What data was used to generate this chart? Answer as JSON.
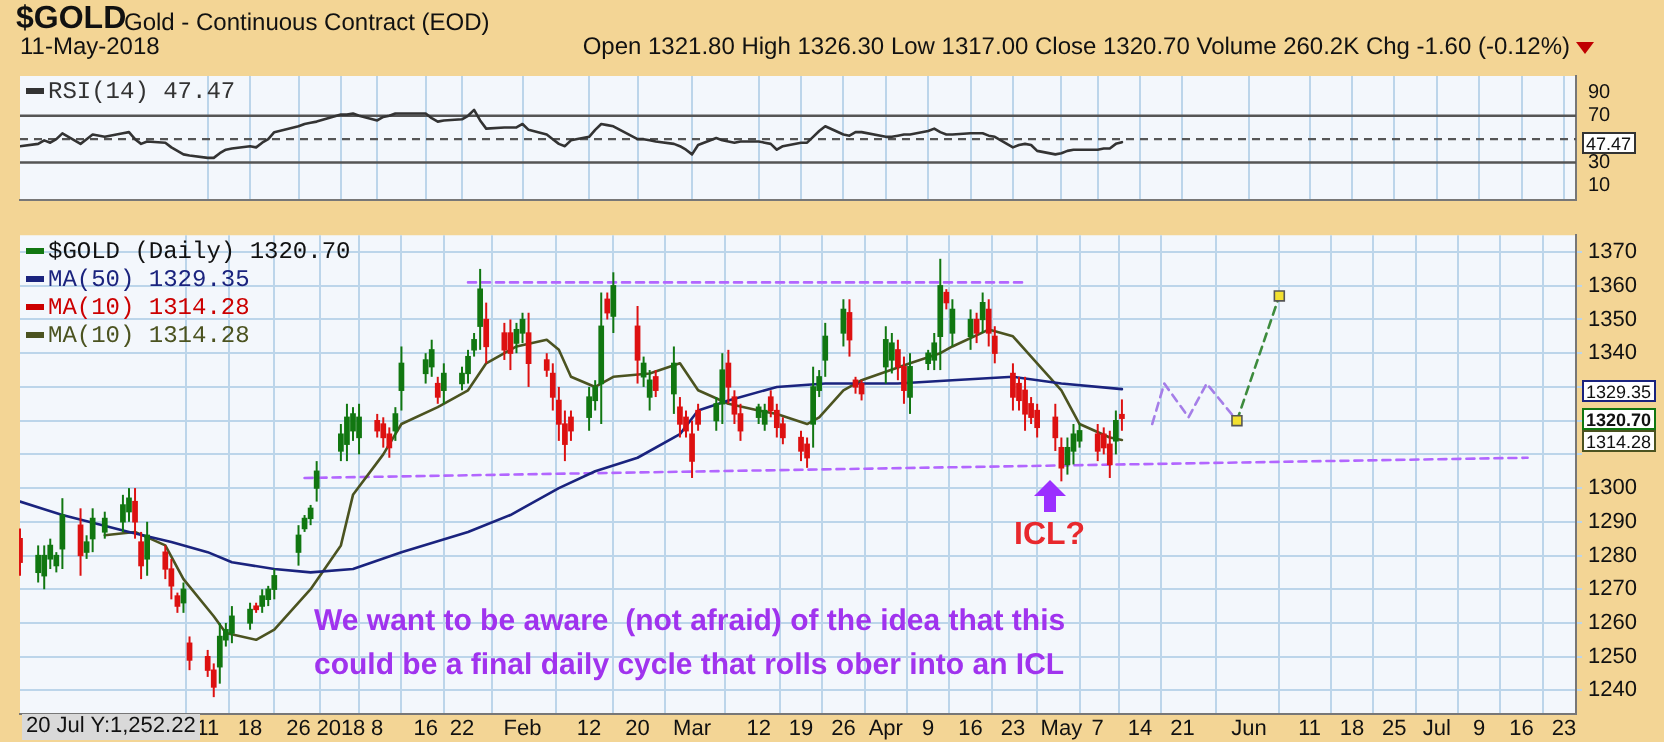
{
  "chart_data": [
    {
      "type": "line",
      "title": "$GOLD",
      "subtitle": "Gold - Continuous Contract (EOD)",
      "annotations": [
        "11-May-2018",
        "Open 1321.80 High 1326.30 Low 1317.00 Close 1320.70 Volume 260.2K Chg -1.60 (-0.12%)",
        "47.47"
      ],
      "x": [
        "2017-11-10",
        "2017-11-13",
        "2017-11-14",
        "2017-11-15",
        "2017-11-16",
        "2017-11-17",
        "2017-11-20",
        "2017-11-21",
        "2017-11-22",
        "2017-11-24",
        "2017-11-27",
        "2017-11-28",
        "2017-11-29",
        "2017-11-30",
        "2017-12-01",
        "2017-12-04",
        "2017-12-05",
        "2017-12-06",
        "2017-12-07",
        "2017-12-08",
        "2017-12-11",
        "2017-12-12",
        "2017-12-13",
        "2017-12-14",
        "2017-12-15",
        "2017-12-18",
        "2017-12-19",
        "2017-12-20",
        "2017-12-21",
        "2017-12-22",
        "2017-12-26",
        "2017-12-27",
        "2017-12-28",
        "2017-12-29",
        "2018-01-02",
        "2018-01-03",
        "2018-01-04",
        "2018-01-05",
        "2018-01-08",
        "2018-01-09",
        "2018-01-10",
        "2018-01-11",
        "2018-01-12",
        "2018-01-16",
        "2018-01-17",
        "2018-01-18",
        "2018-01-19",
        "2018-01-22",
        "2018-01-23",
        "2018-01-24",
        "2018-01-25",
        "2018-01-26",
        "2018-01-29",
        "2018-01-30",
        "2018-01-31",
        "2018-02-01",
        "2018-02-02",
        "2018-02-05",
        "2018-02-06",
        "2018-02-07",
        "2018-02-08",
        "2018-02-09",
        "2018-02-12",
        "2018-02-13",
        "2018-02-14",
        "2018-02-15",
        "2018-02-16",
        "2018-02-20",
        "2018-02-21",
        "2018-02-22",
        "2018-02-23",
        "2018-02-26",
        "2018-02-27",
        "2018-02-28",
        "2018-03-01",
        "2018-03-02",
        "2018-03-05",
        "2018-03-06",
        "2018-03-07",
        "2018-03-08",
        "2018-03-09",
        "2018-03-12",
        "2018-03-13",
        "2018-03-14",
        "2018-03-15",
        "2018-03-16",
        "2018-03-19",
        "2018-03-20",
        "2018-03-21",
        "2018-03-22",
        "2018-03-23",
        "2018-03-26",
        "2018-03-27",
        "2018-03-28",
        "2018-03-29",
        "2018-04-02",
        "2018-04-03",
        "2018-04-04",
        "2018-04-05",
        "2018-04-06",
        "2018-04-09",
        "2018-04-10",
        "2018-04-11",
        "2018-04-12",
        "2018-04-13",
        "2018-04-16",
        "2018-04-17",
        "2018-04-18",
        "2018-04-19",
        "2018-04-20",
        "2018-04-23",
        "2018-04-24",
        "2018-04-25",
        "2018-04-26",
        "2018-04-27",
        "2018-04-30",
        "2018-05-01",
        "2018-05-02",
        "2018-05-03",
        "2018-05-04",
        "2018-05-07",
        "2018-05-08",
        "2018-05-09",
        "2018-05-10",
        "2018-05-11"
      ],
      "xlim": [
        "2017-11-10",
        "2018-07-25"
      ],
      "xticks": [
        {
          "value": "2017-12-11",
          "label": null
        },
        {
          "value": "2017-12-18",
          "label": null
        },
        {
          "value": "2017-12-26",
          "label": null
        },
        {
          "value": "2018-01-02",
          "label": null
        },
        {
          "value": "2018-01-08",
          "label": null
        },
        {
          "value": "2018-01-16",
          "label": null
        },
        {
          "value": "2018-01-22",
          "label": null
        },
        {
          "value": "2018-02-01",
          "label": null
        },
        {
          "value": "2018-02-12",
          "label": null
        },
        {
          "value": "2018-02-20",
          "label": null
        },
        {
          "value": "2018-03-01",
          "label": null
        },
        {
          "value": "2018-03-12",
          "label": null
        },
        {
          "value": "2018-03-19",
          "label": null
        },
        {
          "value": "2018-03-26",
          "label": null
        },
        {
          "value": "2018-04-02",
          "label": null
        },
        {
          "value": "2018-04-09",
          "label": null
        },
        {
          "value": "2018-04-16",
          "label": null
        },
        {
          "value": "2018-04-23",
          "label": null
        },
        {
          "value": "2018-05-01",
          "label": null
        },
        {
          "value": "2018-05-07",
          "label": null
        },
        {
          "value": "2018-05-14",
          "label": null
        },
        {
          "value": "2018-05-21",
          "label": null
        },
        {
          "value": "2018-06-01",
          "label": null
        },
        {
          "value": "2018-06-11",
          "label": null
        },
        {
          "value": "2018-06-18",
          "label": null
        },
        {
          "value": "2018-06-25",
          "label": null
        },
        {
          "value": "2018-07-02",
          "label": null
        },
        {
          "value": "2018-07-09",
          "label": null
        },
        {
          "value": "2018-07-16",
          "label": null
        },
        {
          "value": "2018-07-23",
          "label": null
        }
      ],
      "series": [
        {
          "name": "RSI(14) 47.47",
          "color": "#333333",
          "values": [
            44,
            46,
            49,
            47,
            50,
            55,
            46,
            50,
            54,
            52,
            55,
            56,
            50,
            46,
            48,
            47,
            43,
            40,
            37,
            36,
            34,
            34,
            38,
            41,
            42,
            44,
            43,
            47,
            50,
            56,
            61,
            63,
            64,
            65,
            71,
            71,
            72,
            70,
            66,
            69,
            70,
            72,
            72,
            72,
            68,
            65,
            66,
            67,
            70,
            75,
            66,
            59,
            60,
            60,
            60,
            63,
            58,
            54,
            50,
            46,
            44,
            49,
            52,
            58,
            63,
            62,
            61,
            50,
            50,
            49,
            48,
            46,
            44,
            41,
            37,
            45,
            51,
            49,
            48,
            47,
            48,
            48,
            47,
            46,
            41,
            44,
            47,
            47,
            52,
            57,
            61,
            54,
            53,
            56,
            56,
            52,
            52,
            53,
            54,
            54,
            57,
            59,
            56,
            54,
            54,
            55,
            55,
            55,
            53,
            52,
            43,
            45,
            46,
            45,
            40,
            37,
            38,
            40,
            41,
            41,
            41,
            42,
            42,
            46,
            47.47
          ]
        }
      ],
      "ylim": [
        -2,
        104
      ],
      "yticks": [
        10,
        30,
        {
          "value": 50,
          "label": null
        },
        70,
        90
      ],
      "ref_lines": [
        {
          "axis": "y",
          "value": 70,
          "color": "#555555"
        },
        {
          "axis": "y",
          "value": 30,
          "color": "#555555"
        },
        {
          "axis": "y",
          "value": 50,
          "color": "#555555",
          "line_style": "dashed"
        }
      ],
      "grid": "x",
      "legend": "top left",
      "tick_labels": "y"
    },
    {
      "type": "candlestick",
      "annotations": [
        "We want to be aware  (not afraid) of the idea that this\ncould be a final daily cycle that rolls ober into an ICL",
        "20 Jul Y:1,252.22",
        "ICL?",
        "1329.35",
        "1320.70",
        "1314.28"
      ],
      "x": [
        "2017-11-10",
        "2017-11-13",
        "2017-11-14",
        "2017-11-15",
        "2017-11-16",
        "2017-11-17",
        "2017-11-20",
        "2017-11-21",
        "2017-11-22",
        "2017-11-24",
        "2017-11-27",
        "2017-11-28",
        "2017-11-29",
        "2017-11-30",
        "2017-12-01",
        "2017-12-04",
        "2017-12-05",
        "2017-12-06",
        "2017-12-07",
        "2017-12-08",
        "2017-12-11",
        "2017-12-12",
        "2017-12-13",
        "2017-12-14",
        "2017-12-15",
        "2017-12-18",
        "2017-12-19",
        "2017-12-20",
        "2017-12-21",
        "2017-12-22",
        "2017-12-26",
        "2017-12-27",
        "2017-12-28",
        "2017-12-29",
        "2018-01-02",
        "2018-01-03",
        "2018-01-04",
        "2018-01-05",
        "2018-01-08",
        "2018-01-09",
        "2018-01-10",
        "2018-01-11",
        "2018-01-12",
        "2018-01-16",
        "2018-01-17",
        "2018-01-18",
        "2018-01-19",
        "2018-01-22",
        "2018-01-23",
        "2018-01-24",
        "2018-01-25",
        "2018-01-26",
        "2018-01-29",
        "2018-01-30",
        "2018-01-31",
        "2018-02-01",
        "2018-02-02",
        "2018-02-05",
        "2018-02-06",
        "2018-02-07",
        "2018-02-08",
        "2018-02-09",
        "2018-02-12",
        "2018-02-13",
        "2018-02-14",
        "2018-02-15",
        "2018-02-16",
        "2018-02-20",
        "2018-02-21",
        "2018-02-22",
        "2018-02-23",
        "2018-02-26",
        "2018-02-27",
        "2018-02-28",
        "2018-03-01",
        "2018-03-02",
        "2018-03-05",
        "2018-03-06",
        "2018-03-07",
        "2018-03-08",
        "2018-03-09",
        "2018-03-12",
        "2018-03-13",
        "2018-03-14",
        "2018-03-15",
        "2018-03-16",
        "2018-03-19",
        "2018-03-20",
        "2018-03-21",
        "2018-03-22",
        "2018-03-23",
        "2018-03-26",
        "2018-03-27",
        "2018-03-28",
        "2018-03-29",
        "2018-04-02",
        "2018-04-03",
        "2018-04-04",
        "2018-04-05",
        "2018-04-06",
        "2018-04-09",
        "2018-04-10",
        "2018-04-11",
        "2018-04-12",
        "2018-04-13",
        "2018-04-16",
        "2018-04-17",
        "2018-04-18",
        "2018-04-19",
        "2018-04-20",
        "2018-04-23",
        "2018-04-24",
        "2018-04-25",
        "2018-04-26",
        "2018-04-27",
        "2018-04-30",
        "2018-05-01",
        "2018-05-02",
        "2018-05-03",
        "2018-05-04",
        "2018-05-07",
        "2018-05-08",
        "2018-05-09",
        "2018-05-10",
        "2018-05-11"
      ],
      "xlim": [
        "2017-11-10",
        "2018-07-25"
      ],
      "xticks": [
        {
          "value": "2017-12-11",
          "label": "11"
        },
        {
          "value": "2017-12-18",
          "label": "18"
        },
        {
          "value": "2017-12-26",
          "label": "26"
        },
        {
          "value": "2018-01-02",
          "label": "2018"
        },
        {
          "value": "2018-01-08",
          "label": "8"
        },
        {
          "value": "2018-01-16",
          "label": "16"
        },
        {
          "value": "2018-01-22",
          "label": "22"
        },
        {
          "value": "2018-02-01",
          "label": "Feb"
        },
        {
          "value": "2018-02-12",
          "label": "12"
        },
        {
          "value": "2018-02-20",
          "label": "20"
        },
        {
          "value": "2018-03-01",
          "label": "Mar"
        },
        {
          "value": "2018-03-12",
          "label": "12"
        },
        {
          "value": "2018-03-19",
          "label": "19"
        },
        {
          "value": "2018-03-26",
          "label": "26"
        },
        {
          "value": "2018-04-02",
          "label": "Apr"
        },
        {
          "value": "2018-04-09",
          "label": "9"
        },
        {
          "value": "2018-04-16",
          "label": "16"
        },
        {
          "value": "2018-04-23",
          "label": "23"
        },
        {
          "value": "2018-05-01",
          "label": "May"
        },
        {
          "value": "2018-05-07",
          "label": "7"
        },
        {
          "value": "2018-05-14",
          "label": "14"
        },
        {
          "value": "2018-05-21",
          "label": "21"
        },
        {
          "value": "2018-06-01",
          "label": "Jun"
        },
        {
          "value": "2018-06-11",
          "label": "11"
        },
        {
          "value": "2018-06-18",
          "label": "18"
        },
        {
          "value": "2018-06-25",
          "label": "25"
        },
        {
          "value": "2018-07-02",
          "label": "Jul"
        },
        {
          "value": "2018-07-09",
          "label": "9"
        },
        {
          "value": "2018-07-16",
          "label": "16"
        },
        {
          "value": "2018-07-23",
          "label": "23"
        }
      ],
      "ylim": [
        1233,
        1375
      ],
      "yticks": [
        1240,
        1250,
        1260,
        1270,
        1280,
        1290,
        1300,
        {
          "value": 1310,
          "label": null
        },
        {
          "value": 1320,
          "label": null
        },
        {
          "value": 1330,
          "label": null
        },
        1340,
        1350,
        1360,
        1370
      ],
      "grid": true,
      "legend": "top left",
      "tick_labels": "xy",
      "series": [
        {
          "name": "$GOLD (Daily) 1320.70",
          "color": "#117711",
          "ohlc": [
            [
              1285,
              1288,
              1274,
              1278
            ],
            [
              1275,
              1283,
              1272,
              1280
            ],
            [
              1274,
              1283,
              1270,
              1280
            ],
            [
              1279,
              1285,
              1276,
              1283
            ],
            [
              1277,
              1281,
              1275,
              1280
            ],
            [
              1282,
              1297,
              1276,
              1292
            ],
            [
              1289,
              1294,
              1274,
              1280
            ],
            [
              1281,
              1286,
              1279,
              1284
            ],
            [
              1285,
              1294,
              1281,
              1291
            ],
            [
              1287,
              1293,
              1285,
              1291
            ],
            [
              1290,
              1298,
              1287,
              1295
            ],
            [
              1293,
              1300,
              1290,
              1297
            ],
            [
              1296,
              1300,
              1285,
              1290
            ],
            [
              1284,
              1287,
              1273,
              1277
            ],
            [
              1279,
              1290,
              1274,
              1286
            ],
            [
              1281,
              1283,
              1273,
              1276
            ],
            [
              1276,
              1279,
              1267,
              1271
            ],
            [
              1268,
              1269,
              1263,
              1265
            ],
            [
              1266,
              1272,
              1263,
              1270
            ],
            [
              1254,
              1256,
              1246,
              1249
            ],
            [
              1250,
              1252,
              1244,
              1246
            ],
            [
              1246,
              1248,
              1238,
              1241
            ],
            [
              1247,
              1260,
              1242,
              1256
            ],
            [
              1255,
              1260,
              1253,
              1258
            ],
            [
              1257,
              1265,
              1254,
              1262
            ],
            [
              1260,
              1266,
              1258,
              1264
            ],
            [
              1265,
              1266,
              1263,
              1264
            ],
            [
              1265,
              1270,
              1263,
              1268
            ],
            [
              1267,
              1271,
              1265,
              1270
            ],
            [
              1270,
              1276,
              1267,
              1274
            ],
            [
              1281,
              1289,
              1277,
              1286
            ],
            [
              1288,
              1292,
              1287,
              1291
            ],
            [
              1291,
              1295,
              1289,
              1294
            ],
            [
              1300,
              1308,
              1296,
              1305
            ],
            [
              1311,
              1319,
              1308,
              1316
            ],
            [
              1313,
              1325,
              1308,
              1321
            ],
            [
              1317,
              1324,
              1314,
              1322
            ],
            [
              1315,
              1325,
              1310,
              1321
            ],
            [
              1320,
              1322,
              1315,
              1317
            ],
            [
              1319,
              1321,
              1312,
              1315
            ],
            [
              1316,
              1318,
              1309,
              1312
            ],
            [
              1317,
              1324,
              1314,
              1322
            ],
            [
              1329,
              1342,
              1323,
              1337
            ],
            [
              1334,
              1340,
              1331,
              1338
            ],
            [
              1336,
              1344,
              1333,
              1341
            ],
            [
              1331,
              1333,
              1325,
              1327
            ],
            [
              1329,
              1337,
              1325,
              1334
            ],
            [
              1331,
              1336,
              1329,
              1334
            ],
            [
              1334,
              1341,
              1331,
              1339
            ],
            [
              1341,
              1346,
              1339,
              1344
            ],
            [
              1348,
              1365,
              1341,
              1359
            ],
            [
              1350,
              1355,
              1337,
              1342
            ],
            [
              1346,
              1349,
              1338,
              1341
            ],
            [
              1346,
              1350,
              1335,
              1340
            ],
            [
              1343,
              1349,
              1340,
              1347
            ],
            [
              1346,
              1352,
              1343,
              1350
            ],
            [
              1346,
              1352,
              1330,
              1337
            ],
            [
              1338,
              1340,
              1333,
              1335
            ],
            [
              1334,
              1337,
              1323,
              1327
            ],
            [
              1326,
              1330,
              1314,
              1319
            ],
            [
              1319,
              1323,
              1308,
              1313
            ],
            [
              1321,
              1323,
              1314,
              1317
            ],
            [
              1321,
              1330,
              1317,
              1327
            ],
            [
              1326,
              1332,
              1323,
              1330
            ],
            [
              1331,
              1358,
              1319,
              1348
            ],
            [
              1356,
              1358,
              1350,
              1352
            ],
            [
              1351,
              1364,
              1346,
              1360
            ],
            [
              1348,
              1354,
              1331,
              1338
            ],
            [
              1333,
              1339,
              1330,
              1337
            ],
            [
              1327,
              1335,
              1323,
              1332
            ],
            [
              1333,
              1335,
              1327,
              1329
            ],
            [
              1328,
              1342,
              1322,
              1337
            ],
            [
              1324,
              1327,
              1315,
              1319
            ],
            [
              1321,
              1323,
              1315,
              1317
            ],
            [
              1316,
              1320,
              1303,
              1308
            ],
            [
              1323,
              1325,
              1317,
              1319
            ],
            [
              1320,
              1327,
              1317,
              1325
            ],
            [
              1325,
              1340,
              1319,
              1335
            ],
            [
              1337,
              1341,
              1325,
              1330
            ],
            [
              1327,
              1329,
              1319,
              1322
            ],
            [
              1322,
              1325,
              1314,
              1317
            ],
            [
              1321,
              1325,
              1319,
              1324
            ],
            [
              1319,
              1325,
              1317,
              1323
            ],
            [
              1327,
              1329,
              1321,
              1323
            ],
            [
              1323,
              1325,
              1315,
              1318
            ],
            [
              1319,
              1321,
              1313,
              1315
            ],
            [
              1315,
              1317,
              1308,
              1311
            ],
            [
              1313,
              1315,
              1306,
              1309
            ],
            [
              1319,
              1336,
              1312,
              1330
            ],
            [
              1329,
              1335,
              1327,
              1333
            ],
            [
              1338,
              1349,
              1333,
              1345
            ],
            [
              1346,
              1356,
              1342,
              1353
            ],
            [
              1352,
              1356,
              1339,
              1344
            ],
            [
              1332,
              1333,
              1328,
              1330
            ],
            [
              1331,
              1332,
              1326,
              1328
            ],
            [
              1336,
              1348,
              1331,
              1344
            ],
            [
              1338,
              1346,
              1334,
              1343
            ],
            [
              1341,
              1344,
              1332,
              1336
            ],
            [
              1336,
              1339,
              1325,
              1329
            ],
            [
              1327,
              1340,
              1322,
              1336
            ],
            [
              1337,
              1341,
              1335,
              1340
            ],
            [
              1338,
              1346,
              1335,
              1343
            ],
            [
              1345,
              1368,
              1335,
              1360
            ],
            [
              1358,
              1359,
              1353,
              1355
            ],
            [
              1346,
              1356,
              1342,
              1353
            ],
            [
              1345,
              1353,
              1341,
              1350
            ],
            [
              1350,
              1352,
              1343,
              1346
            ],
            [
              1350,
              1358,
              1346,
              1355
            ],
            [
              1353,
              1356,
              1342,
              1346
            ],
            [
              1345,
              1348,
              1337,
              1340
            ],
            [
              1334,
              1337,
              1323,
              1327
            ],
            [
              1331,
              1333,
              1323,
              1326
            ],
            [
              1329,
              1333,
              1317,
              1322
            ],
            [
              1325,
              1327,
              1319,
              1321
            ],
            [
              1323,
              1325,
              1315,
              1318
            ],
            [
              1321,
              1325,
              1311,
              1315
            ],
            [
              1312,
              1315,
              1302,
              1306
            ],
            [
              1307,
              1315,
              1304,
              1312
            ],
            [
              1311,
              1319,
              1307,
              1316
            ],
            [
              1314,
              1319,
              1312,
              1317
            ],
            [
              1316,
              1319,
              1308,
              1311
            ],
            [
              1316,
              1318,
              1310,
              1312
            ],
            [
              1313,
              1317,
              1303,
              1307
            ],
            [
              1314,
              1323,
              1310,
              1320
            ],
            [
              1321.8,
              1326.3,
              1317,
              1320.7
            ]
          ],
          "colors": [
            "#dd1111",
            "#117711",
            "#117711",
            "#117711",
            "#117711",
            "#117711",
            "#dd1111",
            "#117711",
            "#117711",
            "#117711",
            "#117711",
            "#117711",
            "#dd1111",
            "#dd1111",
            "#117711",
            "#dd1111",
            "#dd1111",
            "#dd1111",
            "#117711",
            "#dd1111",
            "#dd1111",
            "#dd1111",
            "#117711",
            "#117711",
            "#117711",
            "#117711",
            "#dd1111",
            "#117711",
            "#117711",
            "#117711",
            "#117711",
            "#117711",
            "#117711",
            "#117711",
            "#117711",
            "#117711",
            "#117711",
            "#117711",
            "#dd1111",
            "#dd1111",
            "#dd1111",
            "#117711",
            "#117711",
            "#117711",
            "#117711",
            "#dd1111",
            "#117711",
            "#117711",
            "#117711",
            "#117711",
            "#117711",
            "#dd1111",
            "#dd1111",
            "#dd1111",
            "#117711",
            "#117711",
            "#dd1111",
            "#dd1111",
            "#dd1111",
            "#dd1111",
            "#dd1111",
            "#dd1111",
            "#117711",
            "#117711",
            "#117711",
            "#dd1111",
            "#117711",
            "#dd1111",
            "#117711",
            "#117711",
            "#dd1111",
            "#117711",
            "#dd1111",
            "#dd1111",
            "#dd1111",
            "#dd1111",
            "#117711",
            "#117711",
            "#dd1111",
            "#dd1111",
            "#dd1111",
            "#117711",
            "#117711",
            "#dd1111",
            "#dd1111",
            "#dd1111",
            "#dd1111",
            "#dd1111",
            "#117711",
            "#117711",
            "#117711",
            "#117711",
            "#dd1111",
            "#dd1111",
            "#dd1111",
            "#117711",
            "#117711",
            "#dd1111",
            "#dd1111",
            "#117711",
            "#117711",
            "#117711",
            "#117711",
            "#dd1111",
            "#117711",
            "#117711",
            "#dd1111",
            "#117711",
            "#dd1111",
            "#dd1111",
            "#dd1111",
            "#dd1111",
            "#dd1111",
            "#dd1111",
            "#dd1111",
            "#dd1111",
            "#dd1111",
            "#117711",
            "#117711",
            "#117711",
            "#dd1111",
            "#dd1111",
            "#dd1111",
            "#117711",
            "#dd1111"
          ]
        },
        {
          "type": "line",
          "name": "MA(50) 1329.35",
          "color": "#1a237e",
          "x": [
            "2017-11-10",
            "2017-11-17",
            "2017-11-28",
            "2017-12-05",
            "2017-12-11",
            "2017-12-15",
            "2017-12-22",
            "2017-12-28",
            "2018-01-04",
            "2018-01-12",
            "2018-01-23",
            "2018-01-30",
            "2018-02-07",
            "2018-02-13",
            "2018-02-20",
            "2018-02-27",
            "2018-03-02",
            "2018-03-07",
            "2018-03-15",
            "2018-03-23",
            "2018-04-04",
            "2018-04-13",
            "2018-04-23",
            "2018-05-01",
            "2018-05-11"
          ],
          "values": [
            1296,
            1292,
            1287,
            1284,
            1281,
            1278,
            1276,
            1275,
            1276,
            1281,
            1287,
            1292,
            1300,
            1305,
            1309,
            1316,
            1323,
            1326,
            1330,
            1331,
            1331,
            1332,
            1333,
            1331,
            1329.35
          ]
        },
        {
          "type": "line",
          "name": "MA(10) 1314.28",
          "color": "#cc0000",
          "values": [
            null,
            null,
            null,
            null,
            null,
            null,
            null,
            null,
            null,
            null,
            null,
            null,
            null,
            null,
            null,
            null,
            null,
            null,
            null,
            null,
            null,
            null,
            null,
            null,
            null,
            null,
            null,
            null,
            null,
            null,
            null,
            null,
            null,
            null,
            null,
            null,
            null,
            null,
            null,
            null,
            null,
            null,
            null,
            null,
            null,
            null,
            null,
            null,
            null,
            null,
            null,
            null,
            null,
            null,
            null,
            null,
            null,
            null,
            null,
            null,
            null,
            null,
            null,
            null,
            null,
            null,
            null,
            null,
            null,
            null,
            null,
            null,
            null,
            null,
            null,
            null,
            null,
            null,
            null,
            null,
            null,
            null,
            null,
            null,
            null,
            null,
            null,
            null,
            null,
            null,
            null,
            null,
            null,
            null,
            null,
            null,
            null,
            null,
            null,
            null,
            null,
            null,
            null,
            null,
            null,
            null,
            null,
            null,
            null,
            null,
            null,
            null,
            null,
            null,
            null,
            null,
            null,
            null,
            null,
            null,
            null,
            null,
            null,
            null,
            null
          ]
        },
        {
          "type": "line",
          "name": "MA(10) 1314.28",
          "color": "#4b5320",
          "x": [
            "2017-11-24",
            "2017-11-29",
            "2017-12-04",
            "2017-12-07",
            "2017-12-12",
            "2017-12-14",
            "2017-12-19",
            "2017-12-22",
            "2017-12-28",
            "2018-01-02",
            "2018-01-04",
            "2018-01-09",
            "2018-01-12",
            "2018-01-18",
            "2018-01-23",
            "2018-01-26",
            "2018-01-31",
            "2018-02-05",
            "2018-02-07",
            "2018-02-09",
            "2018-02-13",
            "2018-02-16",
            "2018-02-22",
            "2018-02-27",
            "2018-03-02",
            "2018-03-07",
            "2018-03-12",
            "2018-03-15",
            "2018-03-20",
            "2018-03-22",
            "2018-03-26",
            "2018-03-29",
            "2018-04-06",
            "2018-04-11",
            "2018-04-13",
            "2018-04-19",
            "2018-04-23",
            "2018-04-26",
            "2018-05-01",
            "2018-05-04",
            "2018-05-09",
            "2018-05-11"
          ],
          "values": [
            1286,
            1287,
            1283,
            1273,
            1262,
            1257,
            1255,
            1258,
            1270,
            1283,
            1298,
            1310,
            1319,
            1324,
            1329,
            1337,
            1342,
            1344,
            1341,
            1333,
            1330,
            1333,
            1334,
            1337,
            1329,
            1325,
            1323,
            1322,
            1319,
            1321,
            1329,
            1332,
            1337,
            1340,
            1342,
            1347,
            1345,
            1339,
            1329,
            1319,
            1315,
            1314.28
          ]
        },
        {
          "type": "line",
          "color": "#b266ff",
          "line_style": "dashed",
          "x": [
            "2018-01-23",
            "2018-04-25"
          ],
          "values": [
            1361,
            1361
          ]
        },
        {
          "type": "line",
          "color": "#b266ff",
          "line_style": "dashed",
          "x": [
            "2017-12-27",
            "2018-07-17"
          ],
          "values": [
            1303,
            1309
          ]
        },
        {
          "type": "line",
          "color": "#a57ee8",
          "line_style": "dashed",
          "x": [
            "2018-05-16",
            "2018-05-18",
            "2018-05-22",
            "2018-05-25",
            "2018-05-30"
          ],
          "values": [
            1319,
            1331,
            1321,
            1331,
            1320
          ]
        },
        {
          "type": "line",
          "color": "#3d8b3d",
          "line_style": "dashed",
          "x": [
            "2018-05-30",
            "2018-06-06"
          ],
          "values": [
            1320,
            1357
          ]
        },
        {
          "type": "scatter",
          "color": "#f2e030",
          "marker": "square",
          "x": [
            "2018-05-30",
            "2018-06-06"
          ],
          "values": [
            1320,
            1357
          ]
        }
      ]
    }
  ]
}
